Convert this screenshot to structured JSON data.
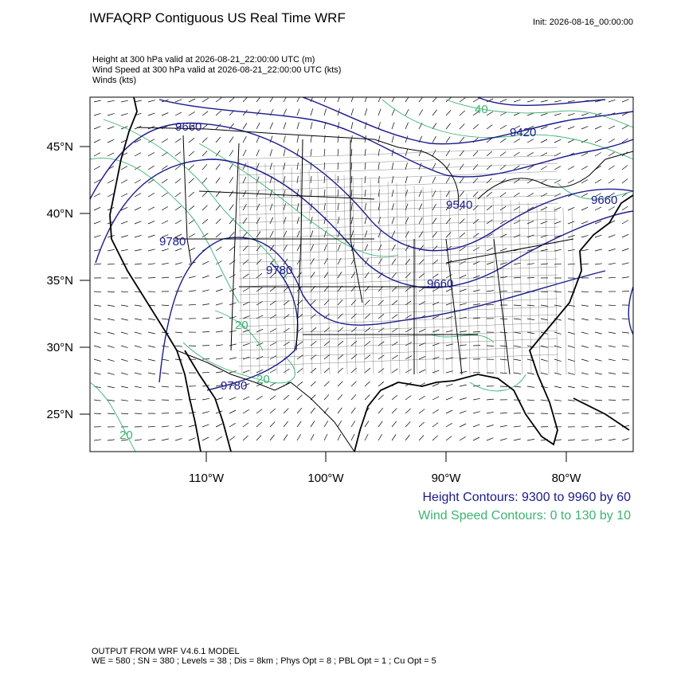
{
  "header": {
    "title": "IWFAQRP Contiguous US Real Time WRF",
    "init": "Init: 2026-08-16_00:00:00",
    "lines": [
      "Height at 300 hPa valid at 2026-08-21_22:00:00 UTC   (m)",
      "Wind Speed at 300 hPa valid at 2026-08-21_22:00:00 UTC   (kts)",
      "Winds   (kts)"
    ]
  },
  "map": {
    "lat_labels": [
      "45°N",
      "40°N",
      "35°N",
      "30°N",
      "25°N"
    ],
    "lon_labels": [
      "110°W",
      "100°W",
      "90°W",
      "80°W"
    ],
    "height_labels": [
      "9660",
      "9420",
      "9540",
      "9660",
      "9780",
      "9780",
      "9660",
      "9780"
    ],
    "speed_labels": [
      "40",
      "20",
      "20",
      "20"
    ]
  },
  "legend": {
    "height": "Height Contours: 9300 to 9960 by 60",
    "speed": "Wind Speed Contours: 0 to 130 by 10"
  },
  "footer": {
    "lines": [
      "OUTPUT FROM WRF V4.6.1 MODEL",
      "WE = 580 ; SN = 380 ; Levels = 38 ; Dis = 8km ; Phys Opt = 8 ; PBL Opt = 1 ; Cu Opt = 5"
    ]
  }
}
